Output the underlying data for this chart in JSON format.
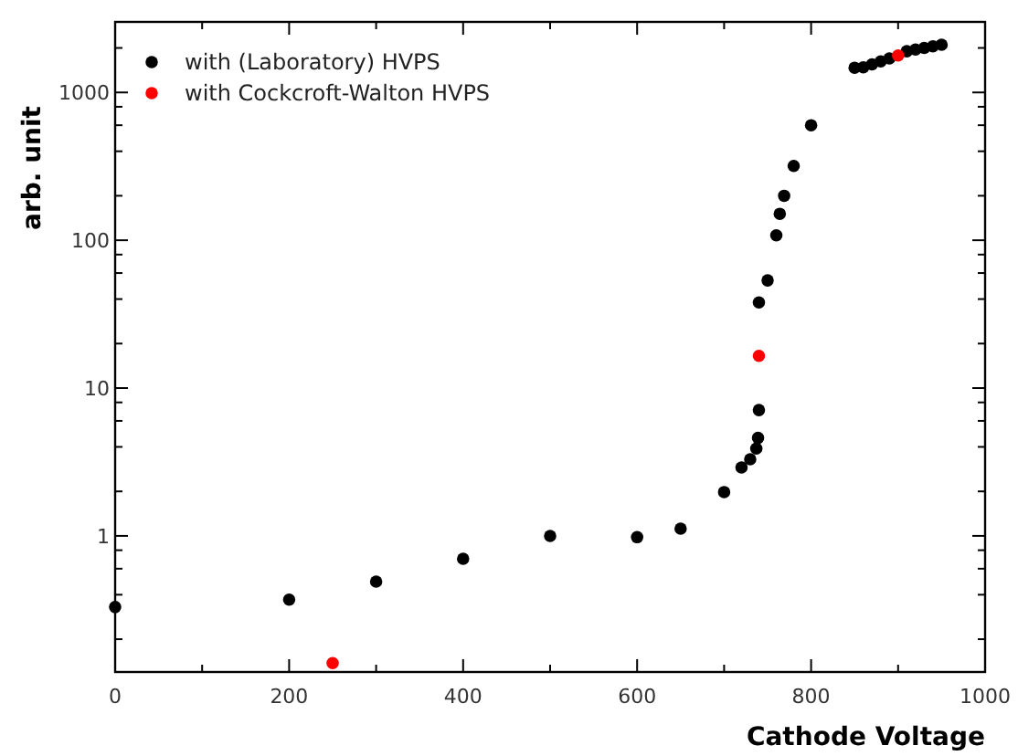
{
  "chart_data": {
    "type": "scatter",
    "xlabel": "Cathode Voltage",
    "ylabel": "arb. unit",
    "log": "y",
    "legend": "top left",
    "marker": "circle",
    "xlim": [
      0,
      1000
    ],
    "ylim": [
      0.12,
      3000
    ],
    "xticks": [
      0,
      {
        "value": 100,
        "label": null
      },
      200,
      {
        "value": 300,
        "label": null
      },
      400,
      {
        "value": 500,
        "label": null
      },
      600,
      {
        "value": 700,
        "label": null
      },
      800,
      {
        "value": 900,
        "label": null
      },
      1000
    ],
    "yticks": [
      {
        "value": 0.2,
        "label": null
      },
      {
        "value": 0.4,
        "label": null
      },
      {
        "value": 0.6,
        "label": null
      },
      {
        "value": 0.8,
        "label": null
      },
      1,
      {
        "value": 2,
        "label": null
      },
      {
        "value": 4,
        "label": null
      },
      {
        "value": 6,
        "label": null
      },
      {
        "value": 8,
        "label": null
      },
      10,
      {
        "value": 20,
        "label": null
      },
      {
        "value": 40,
        "label": null
      },
      {
        "value": 60,
        "label": null
      },
      {
        "value": 80,
        "label": null
      },
      100,
      {
        "value": 200,
        "label": null
      },
      {
        "value": 400,
        "label": null
      },
      {
        "value": 600,
        "label": null
      },
      {
        "value": 800,
        "label": null
      },
      1000,
      {
        "value": 2000,
        "label": null
      }
    ],
    "series": [
      {
        "name": "with (Laboratory) HVPS",
        "color": "#000000",
        "x": [
          0,
          200,
          300,
          400,
          500,
          600,
          650,
          700,
          720,
          730,
          737,
          739,
          740,
          740,
          750,
          760,
          764,
          769,
          780,
          800,
          850,
          860,
          870,
          880,
          890,
          910,
          920,
          930,
          940,
          950
        ],
        "values": [
          0.33,
          0.37,
          0.49,
          0.7,
          1.0,
          0.98,
          1.12,
          1.98,
          2.9,
          3.3,
          3.9,
          4.6,
          7.1,
          38,
          53.5,
          108,
          151,
          200,
          318,
          600,
          1470,
          1480,
          1550,
          1620,
          1700,
          1900,
          1950,
          2000,
          2050,
          2100
        ]
      },
      {
        "name": "with Cockcroft-Walton HVPS",
        "color": "#ff0000",
        "x": [
          250,
          740,
          900
        ],
        "values": [
          0.138,
          16.5,
          1780
        ]
      }
    ]
  }
}
